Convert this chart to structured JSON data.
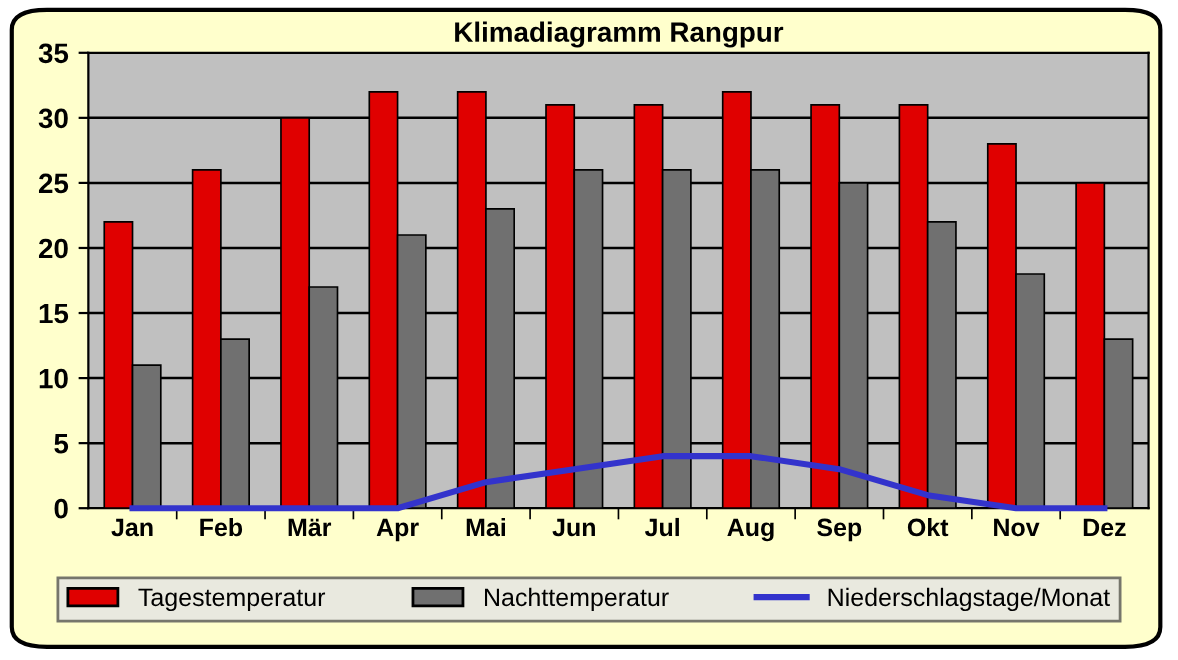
{
  "chart_data": {
    "type": "bar",
    "title": "Klimadiagramm Rangpur",
    "categories": [
      "Jan",
      "Feb",
      "Mär",
      "Apr",
      "Mai",
      "Jun",
      "Jul",
      "Aug",
      "Sep",
      "Okt",
      "Nov",
      "Dez"
    ],
    "series": [
      {
        "name": "Tagestemperatur",
        "color": "#e00000",
        "values": [
          22,
          26,
          30,
          32,
          32,
          31,
          31,
          32,
          31,
          31,
          28,
          25
        ]
      },
      {
        "name": "Nachttemperatur",
        "color": "#707070",
        "values": [
          11,
          13,
          17,
          21,
          23,
          26,
          26,
          26,
          25,
          22,
          18,
          13
        ]
      },
      {
        "name": "Niederschlagstage/Monat",
        "type": "line",
        "color": "#3333cc",
        "values": [
          0,
          0,
          0,
          0,
          2,
          3,
          4,
          4,
          3,
          1,
          0,
          0
        ]
      }
    ],
    "ylim": [
      0,
      35
    ],
    "yticks": [
      0,
      5,
      10,
      15,
      20,
      25,
      30,
      35
    ],
    "grid": "y",
    "legend": "bottom",
    "marker": "none",
    "line_style": "solid"
  }
}
